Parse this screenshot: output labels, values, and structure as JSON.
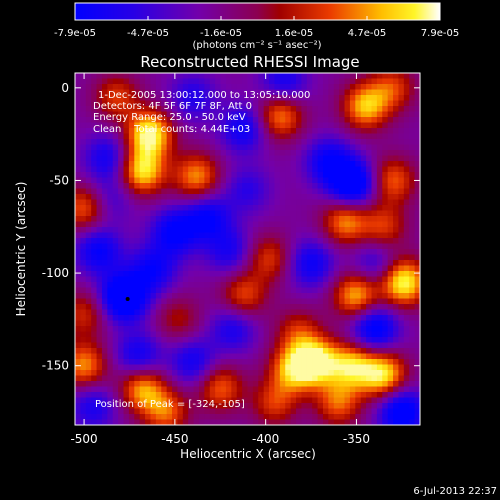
{
  "chart_data": {
    "type": "heatmap",
    "title": "Reconstructed RHESSI Image",
    "xlabel": "Heliocentric X (arcsec)",
    "ylabel": "Heliocentric Y (arcsec)",
    "xlim": [
      -505,
      -315
    ],
    "ylim": [
      -182,
      8
    ],
    "x_ticks": [
      -500,
      -450,
      -400,
      -350
    ],
    "x_tick_labels": [
      "-500",
      "-450",
      "-400",
      "-350"
    ],
    "y_ticks": [
      0,
      -50,
      -100,
      -150
    ],
    "y_tick_labels": [
      "0",
      "-50",
      "-100",
      "-150"
    ],
    "colorbar": {
      "range": [
        -7.9e-05,
        7.9e-05
      ],
      "tick_labels": [
        "-7.9e-05",
        "-4.7e-05",
        "-1.6e-05",
        "1.6e-05",
        "4.7e-05",
        "7.9e-05"
      ],
      "unit_label": "(photons cm⁻² s⁻¹ asec⁻²)",
      "colormap": "blue-purple-red-yellow-white"
    },
    "annotations": [
      "1-Dec-2005 13:00:12.000 to 13:05:10.000",
      "Detectors: 4F 5F 6F 7F 8F, Att 0",
      "Energy Range: 25.0 - 50.0 keV",
      "Clean    Total counts: 4.44E+03"
    ],
    "peak_label": "Position of Peak = [-324,-105]",
    "peak": [
      -324,
      -105
    ],
    "marker": [
      -476,
      -114
    ],
    "blobs": [
      {
        "x": -464,
        "y": -25,
        "v": 1.0
      },
      {
        "x": -468,
        "y": -45,
        "v": 0.9
      },
      {
        "x": -438,
        "y": -48,
        "v": 0.7
      },
      {
        "x": -482,
        "y": -5,
        "v": 0.5
      },
      {
        "x": -392,
        "y": -15,
        "v": 0.7
      },
      {
        "x": -345,
        "y": -10,
        "v": 0.8
      },
      {
        "x": -330,
        "y": 0,
        "v": 0.5
      },
      {
        "x": -330,
        "y": -50,
        "v": 0.6
      },
      {
        "x": -356,
        "y": -72,
        "v": 0.7
      },
      {
        "x": -335,
        "y": -75,
        "v": 0.5
      },
      {
        "x": -324,
        "y": -105,
        "v": 1.0
      },
      {
        "x": -350,
        "y": -112,
        "v": 0.8
      },
      {
        "x": -412,
        "y": -112,
        "v": 0.55
      },
      {
        "x": -398,
        "y": -92,
        "v": 0.5
      },
      {
        "x": -382,
        "y": -132,
        "v": 0.45
      },
      {
        "x": -500,
        "y": -65,
        "v": 0.6
      },
      {
        "x": -500,
        "y": -122,
        "v": 0.45
      },
      {
        "x": -448,
        "y": -125,
        "v": 0.35
      },
      {
        "x": -500,
        "y": -150,
        "v": 0.7
      },
      {
        "x": -468,
        "y": -162,
        "v": 0.75
      },
      {
        "x": -455,
        "y": -175,
        "v": 0.6
      },
      {
        "x": -425,
        "y": -162,
        "v": 0.6
      },
      {
        "x": -385,
        "y": -152,
        "v": 0.75
      },
      {
        "x": -372,
        "y": -148,
        "v": 0.95
      },
      {
        "x": -352,
        "y": -150,
        "v": 0.8
      },
      {
        "x": -335,
        "y": -155,
        "v": 0.9
      },
      {
        "x": -360,
        "y": -170,
        "v": 0.6
      },
      {
        "x": -395,
        "y": -170,
        "v": 0.5
      },
      {
        "x": -390,
        "y": 3,
        "v": -0.5
      },
      {
        "x": -412,
        "y": -22,
        "v": -0.55
      },
      {
        "x": -365,
        "y": -40,
        "v": -0.6
      },
      {
        "x": -352,
        "y": -52,
        "v": -0.9
      },
      {
        "x": -450,
        "y": -78,
        "v": -0.65
      },
      {
        "x": -432,
        "y": -70,
        "v": -0.6
      },
      {
        "x": -492,
        "y": -88,
        "v": -0.6
      },
      {
        "x": -487,
        "y": -38,
        "v": -0.5
      },
      {
        "x": -478,
        "y": -113,
        "v": -1.0
      },
      {
        "x": -462,
        "y": -98,
        "v": -0.55
      },
      {
        "x": -420,
        "y": -88,
        "v": -0.45
      },
      {
        "x": -375,
        "y": -95,
        "v": -0.55
      },
      {
        "x": -340,
        "y": -130,
        "v": -0.75
      },
      {
        "x": -470,
        "y": -145,
        "v": -0.55
      },
      {
        "x": -440,
        "y": -148,
        "v": -0.5
      },
      {
        "x": -325,
        "y": -175,
        "v": -0.8
      },
      {
        "x": -418,
        "y": -130,
        "v": -0.45
      },
      {
        "x": -495,
        "y": -172,
        "v": -0.45
      },
      {
        "x": -410,
        "y": -55,
        "v": -0.35
      },
      {
        "x": -440,
        "y": -5,
        "v": -0.4
      },
      {
        "x": -340,
        "y": -95,
        "v": -0.4
      },
      {
        "x": -485,
        "y": -60,
        "v": -0.3
      }
    ]
  },
  "footer": {
    "timestamp": "6-Jul-2013 22:37"
  }
}
